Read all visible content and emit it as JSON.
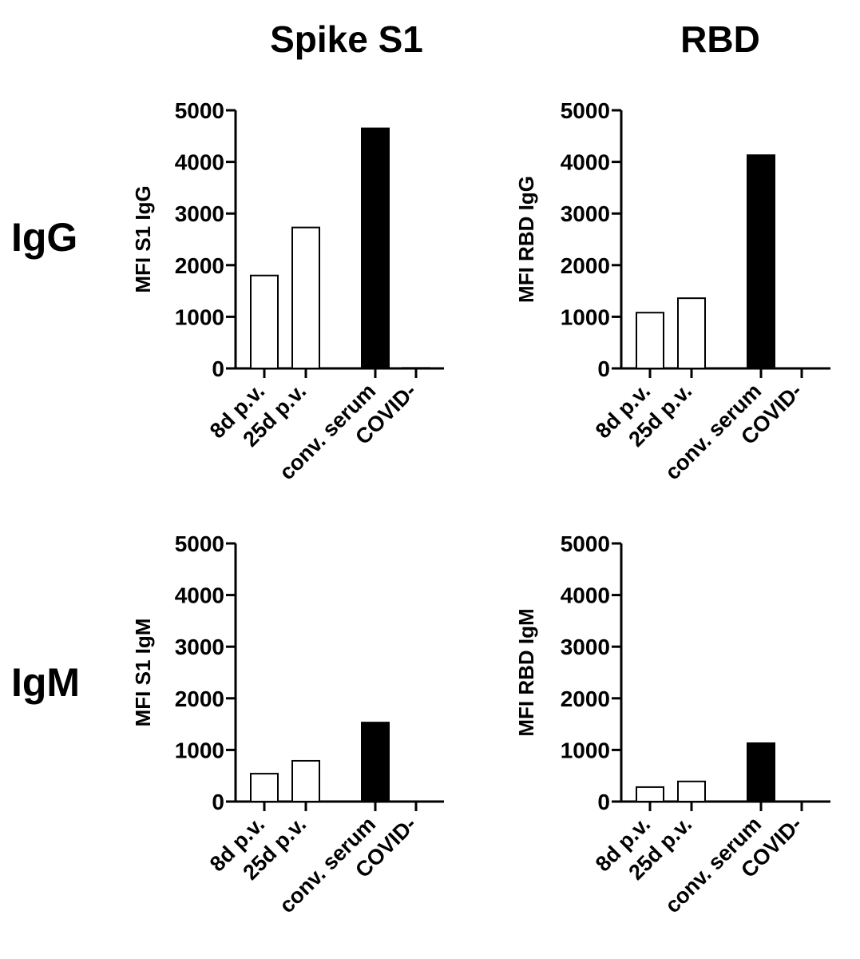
{
  "column_titles": [
    "Spike S1",
    "RBD"
  ],
  "row_titles": [
    "IgG",
    "IgM"
  ],
  "colors": {
    "open_bar_fill": "#ffffff",
    "filled_bar_fill": "#000000",
    "bar_stroke": "#000000"
  },
  "chart_data": [
    {
      "type": "bar",
      "ylabel": "MFI S1 IgG",
      "ylim": [
        0,
        5000
      ],
      "yticks": [
        0,
        1000,
        2000,
        3000,
        4000,
        5000
      ],
      "categories": [
        "8d p.v.",
        "25d p.v.",
        "conv. serum",
        "COVID-"
      ],
      "values": [
        1800,
        2730,
        4650,
        10
      ],
      "bar_fills": [
        "open",
        "open",
        "filled",
        "filled"
      ]
    },
    {
      "type": "bar",
      "ylabel": "MFI RBD IgG",
      "ylim": [
        0,
        5000
      ],
      "yticks": [
        0,
        1000,
        2000,
        3000,
        4000,
        5000
      ],
      "categories": [
        "8d p.v.",
        "25d p.v.",
        "conv. serum",
        "COVID-"
      ],
      "values": [
        1080,
        1360,
        4130,
        0
      ],
      "bar_fills": [
        "open",
        "open",
        "filled",
        "filled"
      ]
    },
    {
      "type": "bar",
      "ylabel": "MFI S1 IgM",
      "ylim": [
        0,
        5000
      ],
      "yticks": [
        0,
        1000,
        2000,
        3000,
        4000,
        5000
      ],
      "categories": [
        "8d p.v.",
        "25d p.v.",
        "conv. serum",
        "COVID-"
      ],
      "values": [
        540,
        790,
        1530,
        0
      ],
      "bar_fills": [
        "open",
        "open",
        "filled",
        "filled"
      ]
    },
    {
      "type": "bar",
      "ylabel": "MFI RBD IgM",
      "ylim": [
        0,
        5000
      ],
      "yticks": [
        0,
        1000,
        2000,
        3000,
        4000,
        5000
      ],
      "categories": [
        "8d p.v.",
        "25d p.v.",
        "conv. serum",
        "COVID-"
      ],
      "values": [
        280,
        390,
        1130,
        0
      ],
      "bar_fills": [
        "open",
        "open",
        "filled",
        "filled"
      ]
    }
  ]
}
